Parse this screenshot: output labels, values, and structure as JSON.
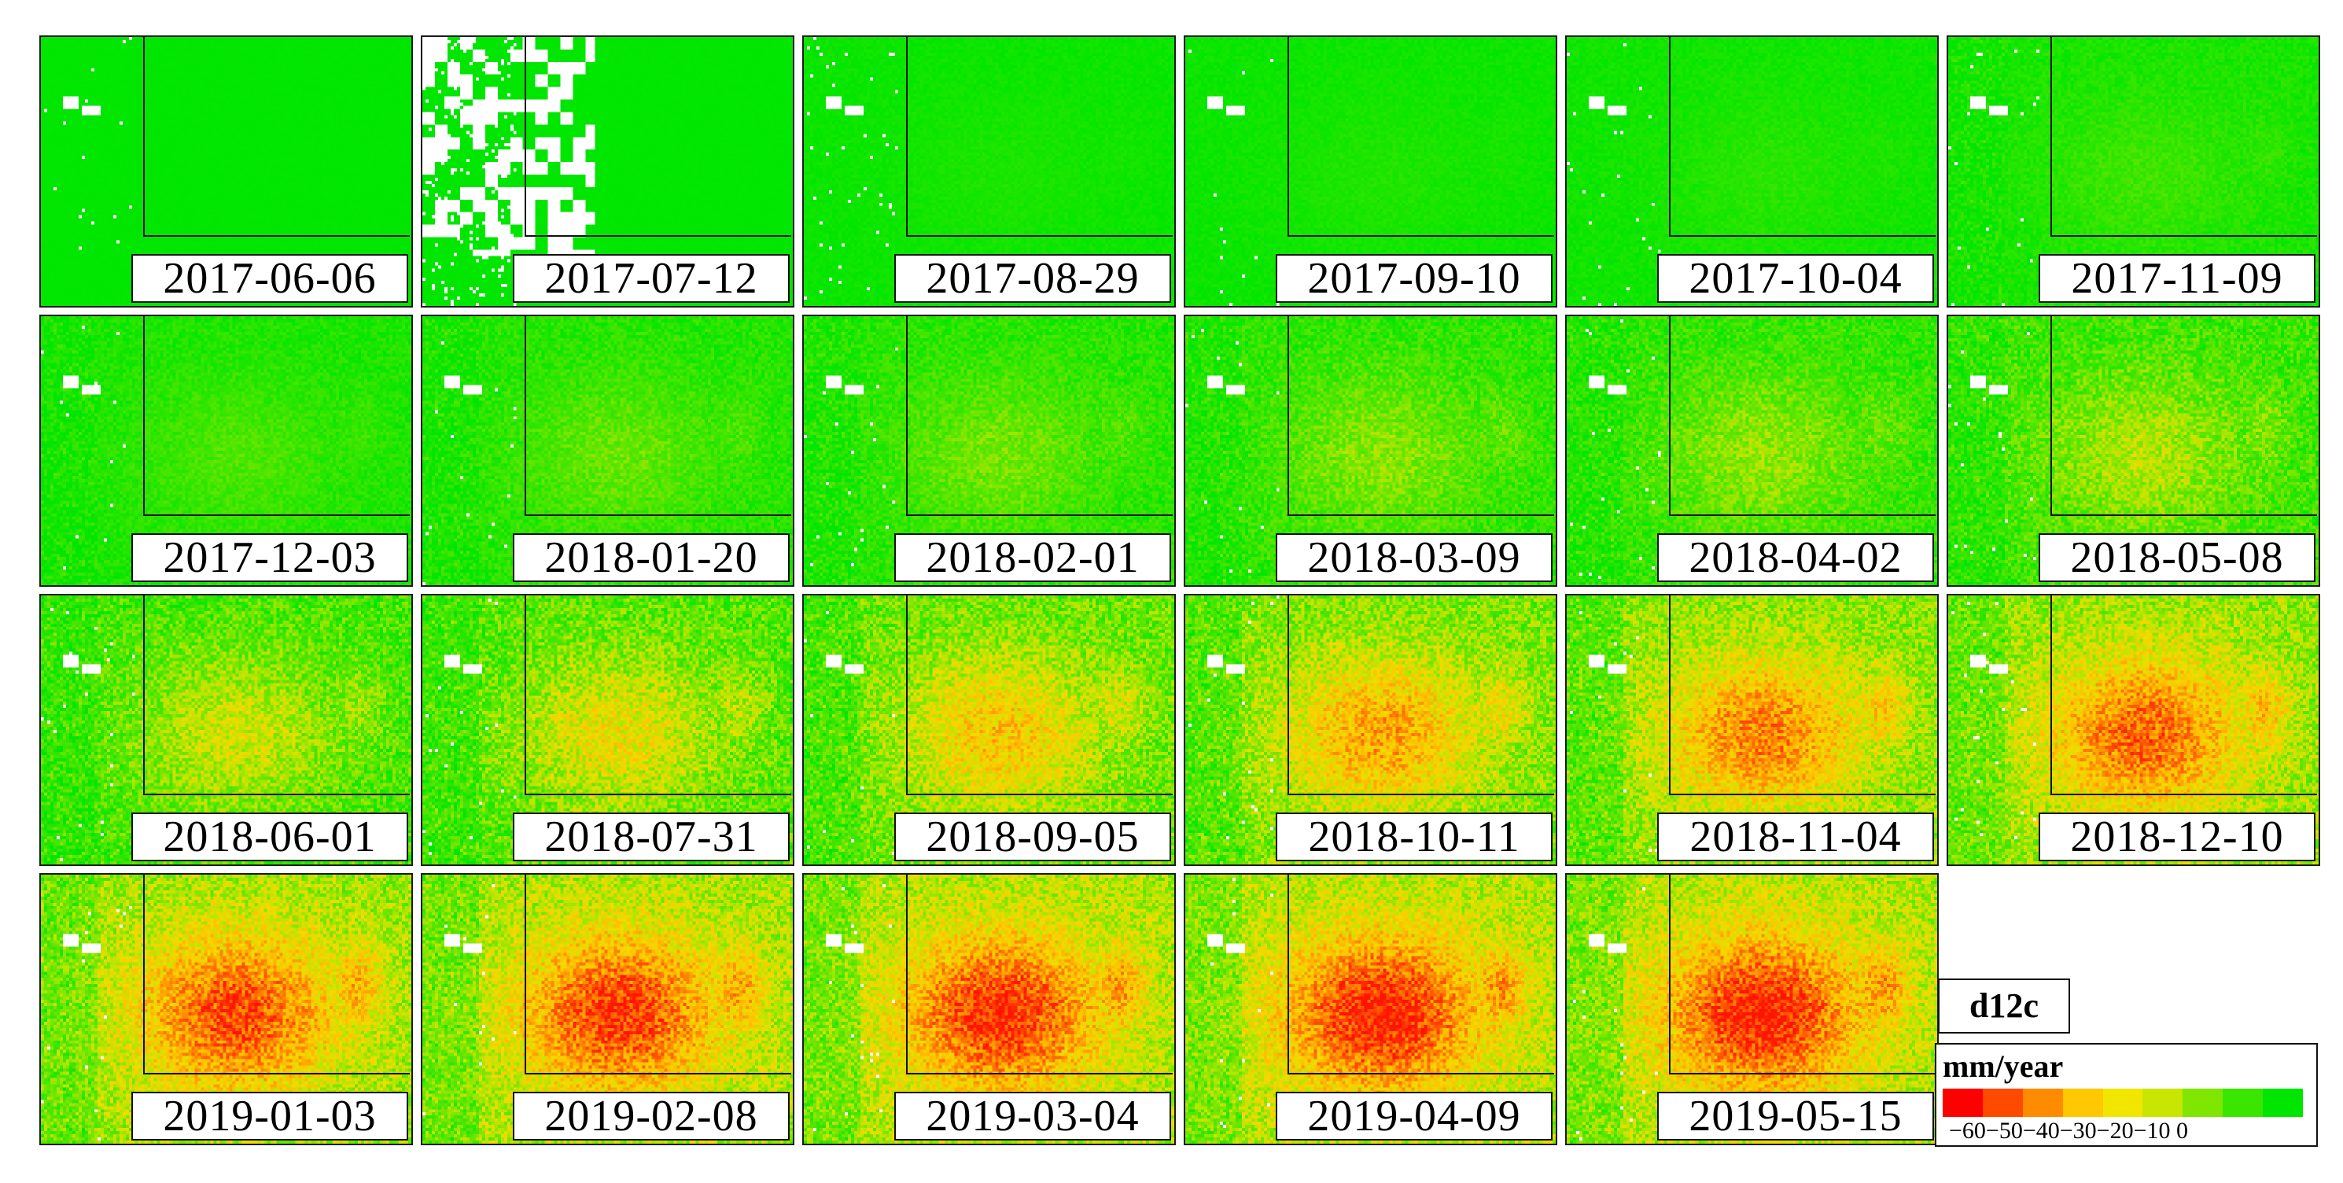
{
  "panels": [
    {
      "date": "2017-06-06",
      "level": 0.0,
      "cloud": 0.02
    },
    {
      "date": "2017-07-12",
      "level": 0.0,
      "cloud": 0.3
    },
    {
      "date": "2017-08-29",
      "level": 0.06,
      "cloud": 0.06
    },
    {
      "date": "2017-09-10",
      "level": 0.07,
      "cloud": 0.02
    },
    {
      "date": "2017-10-04",
      "level": 0.09,
      "cloud": 0.02
    },
    {
      "date": "2017-11-09",
      "level": 0.14,
      "cloud": 0.02
    },
    {
      "date": "2017-12-03",
      "level": 0.17,
      "cloud": 0.02
    },
    {
      "date": "2018-01-20",
      "level": 0.22,
      "cloud": 0.02
    },
    {
      "date": "2018-02-01",
      "level": 0.24,
      "cloud": 0.02
    },
    {
      "date": "2018-03-09",
      "level": 0.28,
      "cloud": 0.02
    },
    {
      "date": "2018-04-02",
      "level": 0.3,
      "cloud": 0.02
    },
    {
      "date": "2018-05-08",
      "level": 0.36,
      "cloud": 0.02
    },
    {
      "date": "2018-06-01",
      "level": 0.42,
      "cloud": 0.02
    },
    {
      "date": "2018-07-31",
      "level": 0.5,
      "cloud": 0.02
    },
    {
      "date": "2018-09-05",
      "level": 0.6,
      "cloud": 0.02
    },
    {
      "date": "2018-10-11",
      "level": 0.7,
      "cloud": 0.02
    },
    {
      "date": "2018-11-04",
      "level": 0.78,
      "cloud": 0.02
    },
    {
      "date": "2018-12-10",
      "level": 0.84,
      "cloud": 0.02
    },
    {
      "date": "2019-01-03",
      "level": 0.9,
      "cloud": 0.02
    },
    {
      "date": "2019-02-08",
      "level": 0.94,
      "cloud": 0.02
    },
    {
      "date": "2019-03-04",
      "level": 0.97,
      "cloud": 0.02
    },
    {
      "date": "2019-04-09",
      "level": 1.0,
      "cloud": 0.02
    },
    {
      "date": "2019-05-15",
      "level": 1.0,
      "cloud": 0.02
    }
  ],
  "legend": {
    "tag": "d12c",
    "unit": "mm/year",
    "ticks": "−60−50−40−30−20−10  0",
    "colors": [
      "#ff0000",
      "#ff4a00",
      "#ff8c00",
      "#ffc800",
      "#f0e600",
      "#c8e600",
      "#7ee600",
      "#3ae600",
      "#00e600"
    ]
  }
}
